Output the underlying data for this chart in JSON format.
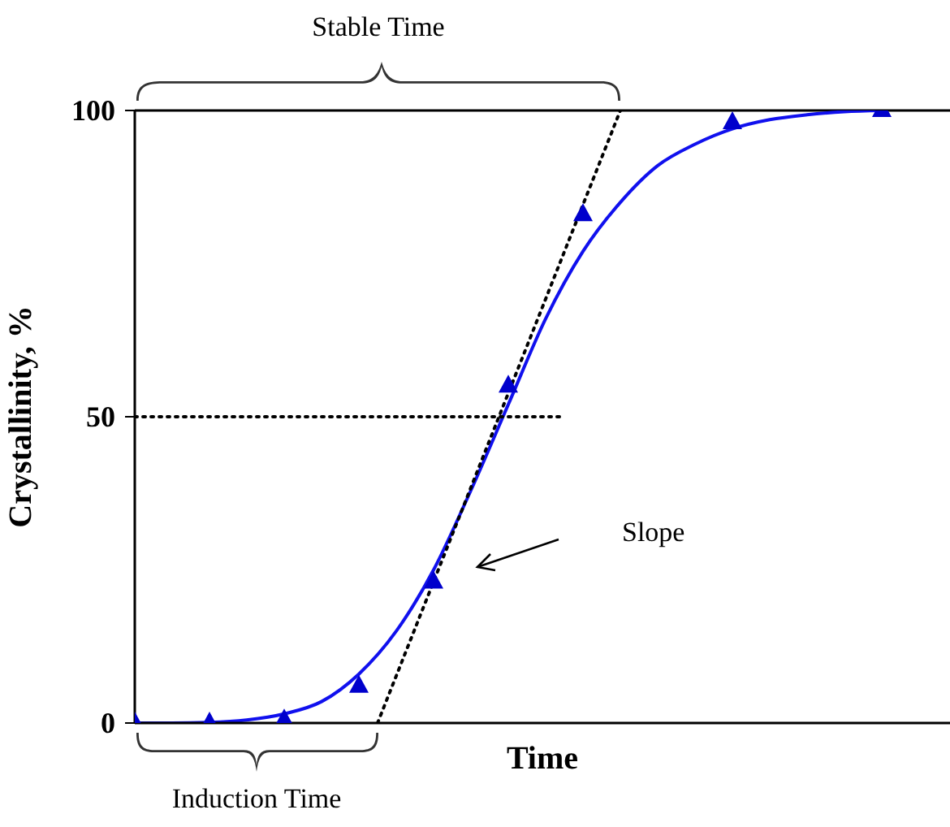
{
  "chart_data": {
    "type": "line",
    "xlabel": "Time",
    "ylabel": "Crystallinity, %",
    "categories": [
      null,
      null,
      null,
      null,
      null,
      null,
      null,
      null,
      null,
      null,
      null,
      null,
      null,
      null,
      null,
      null,
      null,
      null,
      null,
      null,
      null,
      null,
      null,
      null,
      null,
      null,
      null,
      null,
      null,
      null,
      null,
      null,
      null,
      null,
      null,
      null,
      null,
      null,
      null,
      null,
      null
    ],
    "ylim": [
      0,
      100
    ],
    "yticks": [
      0,
      50,
      100
    ],
    "tick_labels": "y",
    "legend": false,
    "ref_lines": [
      {
        "axis": "y",
        "value": 100,
        "color": "#000000",
        "line_style": "solid"
      }
    ],
    "annotations": [
      "Stable Time",
      "Induction Time",
      "Slope"
    ],
    "series": [
      {
        "type": "scatter",
        "marker": "triangle",
        "color": "#0000cc",
        "values": [
          0,
          null,
          null,
          null,
          0,
          null,
          null,
          null,
          0.5,
          null,
          null,
          null,
          6,
          null,
          null,
          null,
          23,
          null,
          null,
          null,
          55,
          null,
          null,
          null,
          83,
          null,
          null,
          null,
          null,
          null,
          null,
          null,
          98,
          null,
          null,
          null,
          null,
          null,
          null,
          null,
          100
        ]
      },
      {
        "marker": "none",
        "line_style": "solid",
        "color": "#1010ee",
        "values": [
          0,
          null,
          0,
          null,
          0.1,
          null,
          0.5,
          null,
          1.5,
          null,
          3.5,
          null,
          8,
          null,
          15,
          null,
          25,
          null,
          38,
          null,
          52,
          null,
          66,
          null,
          77,
          null,
          85,
          null,
          91,
          null,
          94.5,
          null,
          97,
          null,
          98.5,
          null,
          99.3,
          null,
          99.8,
          null,
          100
        ]
      },
      {
        "marker": "none",
        "line_style": "dotted",
        "color": "#000000",
        "values": [
          null,
          null,
          null,
          null,
          null,
          null,
          null,
          null,
          null,
          null,
          null,
          null,
          null,
          0,
          null,
          null,
          null,
          null,
          null,
          null,
          null,
          null,
          null,
          null,
          null,
          null,
          100,
          null,
          null,
          null,
          null,
          null,
          null,
          null,
          null,
          null,
          null,
          null,
          null,
          null,
          null
        ]
      },
      {
        "marker": "none",
        "line_style": "dotted",
        "color": "#000000",
        "values": [
          50,
          null,
          null,
          null,
          null,
          null,
          null,
          null,
          null,
          null,
          null,
          null,
          null,
          null,
          null,
          null,
          null,
          null,
          null,
          null,
          null,
          null,
          null,
          50,
          null,
          null,
          null,
          null,
          null,
          null,
          null,
          null,
          null,
          null,
          null,
          null,
          null,
          null,
          null,
          null,
          null
        ]
      }
    ]
  }
}
